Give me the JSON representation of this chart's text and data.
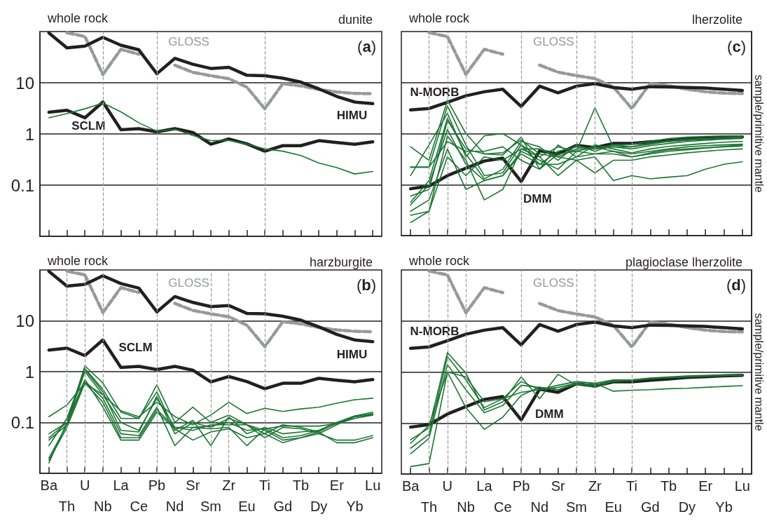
{
  "chart_data": [
    {
      "type": "line",
      "title": "dunite",
      "subtitle": "whole rock",
      "annotations": [
        "(a)"
      ],
      "categories": [
        "Ba",
        "Th",
        "U",
        "Nb",
        "La",
        "Ce",
        "Pb",
        "Nd",
        "Sr",
        "Sm",
        "Zr",
        "Eu",
        "Ti",
        "Gd",
        "Tb",
        "Dy",
        "Er",
        "Yb",
        "Lu"
      ],
      "log": "y",
      "ylim": [
        0.01,
        100
      ],
      "yticks": [
        0.1,
        1,
        10
      ],
      "grid": "y",
      "marker": "none",
      "tick_labels": "y",
      "ref_lines": [
        {
          "axis": "x",
          "value": "Nb",
          "color": "#999999",
          "line_style": "dashed"
        },
        {
          "axis": "x",
          "value": "Pb",
          "color": "#999999",
          "line_style": "dashed"
        },
        {
          "axis": "x",
          "value": "Ti",
          "color": "#999999",
          "line_style": "dashed"
        }
      ],
      "series": [
        {
          "name": "GLOSS",
          "color": "#97999c",
          "line_style": "dashed",
          "values": [
            null,
            95,
            80,
            14.5,
            45,
            36,
            null,
            22,
            16,
            13.7,
            12,
            8.2,
            3.1,
            9.6,
            8.7,
            7.4,
            6.6,
            6.2,
            6.1
          ]
        },
        {
          "name": "HIMU",
          "color": "#231f20",
          "values": [
            94,
            48,
            52,
            77,
            54,
            44,
            15,
            30,
            23,
            19,
            20,
            14,
            13.7,
            12.3,
            10.3,
            7.6,
            5.4,
            4.2,
            3.9
          ]
        },
        {
          "name": "SCLM",
          "color": "#231f20",
          "values": [
            2.65,
            2.9,
            2.07,
            4.2,
            1.21,
            1.27,
            1.1,
            1.27,
            1.07,
            0.63,
            0.8,
            0.64,
            0.46,
            0.59,
            0.59,
            0.74,
            0.68,
            0.63,
            0.7
          ]
        },
        {
          "color": "#1b7533",
          "values": [
            2.07,
            2.5,
            3.1,
            4.0,
            2.7,
            1.65,
            1.13,
            1.24,
            0.93,
            0.74,
            0.75,
            0.63,
            0.51,
            0.46,
            0.38,
            0.27,
            0.22,
            0.165,
            0.185
          ]
        }
      ]
    },
    {
      "type": "line",
      "title": "harzburgite",
      "subtitle": "whole rock",
      "annotations": [
        "(b)"
      ],
      "categories": [
        "Ba",
        "Th",
        "U",
        "Nb",
        "La",
        "Ce",
        "Pb",
        "Nd",
        "Sr",
        "Sm",
        "Zr",
        "Eu",
        "Ti",
        "Gd",
        "Tb",
        "Dy",
        "Er",
        "Yb",
        "Lu"
      ],
      "log": "y",
      "ylim": [
        0.01,
        100
      ],
      "yticks": [
        0.1,
        1,
        10
      ],
      "grid": "y",
      "marker": "none",
      "ref_lines": [
        {
          "axis": "x",
          "value": "Th",
          "color": "#999999",
          "line_style": "dashed"
        },
        {
          "axis": "x",
          "value": "U",
          "color": "#999999",
          "line_style": "dashed"
        },
        {
          "axis": "x",
          "value": "Nb",
          "color": "#999999",
          "line_style": "dashed"
        },
        {
          "axis": "x",
          "value": "Pb",
          "color": "#999999",
          "line_style": "dashed"
        },
        {
          "axis": "x",
          "value": "Sm",
          "color": "#999999",
          "line_style": "dashed"
        },
        {
          "axis": "x",
          "value": "Zr",
          "color": "#999999",
          "line_style": "dashed"
        },
        {
          "axis": "x",
          "value": "Ti",
          "color": "#999999",
          "line_style": "dashed"
        }
      ],
      "series": [
        {
          "name": "GLOSS",
          "color": "#97999c",
          "line_style": "dashed",
          "values": [
            null,
            95,
            80,
            14.5,
            45,
            36,
            null,
            22,
            16,
            13.7,
            12,
            8.2,
            3.1,
            9.6,
            8.7,
            7.4,
            6.6,
            6.2,
            6.1
          ]
        },
        {
          "name": "HIMU",
          "color": "#231f20",
          "values": [
            94,
            48,
            52,
            77,
            54,
            44,
            15,
            30,
            23,
            19,
            20,
            14,
            13.7,
            12.3,
            10.3,
            7.6,
            5.4,
            4.2,
            3.9
          ]
        },
        {
          "name": "SCLM",
          "color": "#231f20",
          "values": [
            2.65,
            2.9,
            2.07,
            4.2,
            1.21,
            1.27,
            1.1,
            1.27,
            1.07,
            0.63,
            0.8,
            0.64,
            0.46,
            0.59,
            0.59,
            0.74,
            0.68,
            0.63,
            0.7
          ]
        },
        {
          "color": "#1b7533",
          "values": [
            0.13,
            0.22,
            0.6,
            0.35,
            0.17,
            0.13,
            0.25,
            0.13,
            0.09,
            0.14,
            0.25,
            0.15,
            0.19,
            0.165,
            0.185,
            0.2,
            0.24,
            0.28,
            0.3
          ]
        },
        {
          "color": "#1b7533",
          "values": [
            0.06,
            0.1,
            1.3,
            0.6,
            0.16,
            0.12,
            0.55,
            0.1,
            0.2,
            0.1,
            0.14,
            0.09,
            0.06,
            0.09,
            0.08,
            0.065,
            0.1,
            0.13,
            0.15
          ]
        },
        {
          "color": "#1b7533",
          "values": [
            0.045,
            0.09,
            1.15,
            0.45,
            0.12,
            0.12,
            0.4,
            0.07,
            0.11,
            0.035,
            0.13,
            0.06,
            0.08,
            0.06,
            0.065,
            0.07,
            0.1,
            0.135,
            0.16
          ]
        },
        {
          "color": "#1b7533",
          "values": [
            0.035,
            0.12,
            1.1,
            0.4,
            0.07,
            0.065,
            0.33,
            0.06,
            0.1,
            0.08,
            0.12,
            0.09,
            0.05,
            0.08,
            0.075,
            0.06,
            0.09,
            0.13,
            0.14
          ]
        },
        {
          "color": "#1b7533",
          "values": [
            0.02,
            0.09,
            0.65,
            0.3,
            0.06,
            0.055,
            0.2,
            0.035,
            0.08,
            0.075,
            0.08,
            0.035,
            0.075,
            0.05,
            0.055,
            0.07,
            0.095,
            0.13,
            0.145
          ]
        },
        {
          "color": "#1b7533",
          "values": [
            0.018,
            0.08,
            0.6,
            0.25,
            0.05,
            0.05,
            0.18,
            0.08,
            0.07,
            0.09,
            0.09,
            0.09,
            0.07,
            0.045,
            0.05,
            0.06,
            0.045,
            0.045,
            0.055
          ]
        },
        {
          "color": "#1b7533",
          "values": [
            0.016,
            0.1,
            0.7,
            0.2,
            0.045,
            0.045,
            0.16,
            0.075,
            0.045,
            0.065,
            0.075,
            0.05,
            0.06,
            0.04,
            0.05,
            0.065,
            0.04,
            0.04,
            0.05
          ]
        },
        {
          "color": "#1b7533",
          "values": [
            0.05,
            0.1,
            1.0,
            0.35,
            0.1,
            0.07,
            0.3,
            0.08,
            0.08,
            0.085,
            0.1,
            0.07,
            0.075,
            0.085,
            0.085,
            0.085,
            0.095,
            0.12,
            0.14
          ]
        }
      ]
    },
    {
      "type": "line",
      "title": "lherzolite",
      "subtitle": "whole rock",
      "ylabel": "sample/primitive mantle",
      "annotations": [
        "(c)"
      ],
      "categories": [
        "Ba",
        "Th",
        "U",
        "Nb",
        "La",
        "Ce",
        "Pb",
        "Nd",
        "Sr",
        "Sm",
        "Zr",
        "Eu",
        "Ti",
        "Gd",
        "Tb",
        "Dy",
        "Er",
        "Yb",
        "Lu"
      ],
      "log": "y",
      "ylim": [
        0.01,
        100
      ],
      "yticks": [
        0.1,
        1,
        10
      ],
      "grid": "y",
      "marker": "none",
      "tick_labels": false,
      "ref_lines": [
        {
          "axis": "x",
          "value": "Th",
          "color": "#999999",
          "line_style": "dashed"
        },
        {
          "axis": "x",
          "value": "U",
          "color": "#999999",
          "line_style": "dashed"
        },
        {
          "axis": "x",
          "value": "Nb",
          "color": "#999999",
          "line_style": "dashed"
        },
        {
          "axis": "x",
          "value": "Pb",
          "color": "#999999",
          "line_style": "dashed"
        },
        {
          "axis": "x",
          "value": "Sm",
          "color": "#999999",
          "line_style": "dashed"
        },
        {
          "axis": "x",
          "value": "Zr",
          "color": "#999999",
          "line_style": "dashed"
        },
        {
          "axis": "x",
          "value": "Ti",
          "color": "#999999",
          "line_style": "dashed"
        }
      ],
      "series": [
        {
          "name": "GLOSS",
          "color": "#97999c",
          "line_style": "dashed",
          "values": [
            null,
            95,
            80,
            14.5,
            45,
            36,
            null,
            22,
            16,
            13.7,
            12,
            8.2,
            3.1,
            9.6,
            8.7,
            7.4,
            6.6,
            6.2,
            6.1
          ]
        },
        {
          "name": "N-MORB",
          "color": "#231f20",
          "values": [
            2.9,
            3.1,
            4.1,
            5.5,
            6.6,
            7.4,
            3.4,
            8.5,
            6.3,
            8.5,
            9.5,
            8.0,
            7.4,
            8.3,
            8.2,
            8.0,
            7.8,
            7.4,
            7.0
          ]
        },
        {
          "name": "DMM",
          "color": "#231f20",
          "values": [
            0.083,
            0.093,
            0.15,
            0.21,
            0.29,
            0.33,
            0.115,
            0.46,
            0.4,
            0.59,
            0.53,
            0.64,
            0.64,
            0.69,
            0.73,
            0.78,
            0.81,
            0.84,
            0.86
          ]
        },
        {
          "color": "#1b7533",
          "values": [
            0.55,
            0.3,
            4.5,
            1.0,
            0.4,
            0.42,
            0.75,
            0.4,
            0.35,
            0.5,
            0.5,
            0.6,
            0.62,
            0.7,
            0.8,
            0.85,
            0.88,
            0.9,
            0.9
          ]
        },
        {
          "color": "#1b7533",
          "values": [
            0.22,
            0.22,
            3.5,
            0.6,
            0.15,
            0.17,
            0.6,
            0.25,
            0.45,
            0.55,
            0.5,
            0.55,
            0.55,
            0.62,
            0.7,
            0.74,
            0.78,
            0.82,
            0.84
          ]
        },
        {
          "color": "#1b7533",
          "values": [
            0.15,
            0.6,
            2.5,
            0.35,
            0.9,
            1.0,
            0.6,
            0.35,
            0.55,
            0.45,
            3.2,
            0.55,
            0.5,
            0.58,
            0.64,
            0.7,
            0.74,
            0.78,
            0.8
          ]
        },
        {
          "color": "#1b7533",
          "values": [
            0.06,
            0.08,
            1.8,
            0.5,
            0.4,
            0.38,
            0.85,
            0.2,
            0.6,
            0.35,
            0.6,
            0.5,
            0.42,
            0.5,
            0.56,
            0.6,
            0.64,
            0.68,
            0.7
          ]
        },
        {
          "color": "#1b7533",
          "values": [
            0.04,
            0.1,
            1.2,
            0.25,
            0.12,
            0.15,
            0.45,
            0.3,
            0.2,
            0.45,
            0.55,
            0.45,
            0.4,
            0.45,
            0.5,
            0.55,
            0.58,
            0.6,
            0.62
          ]
        },
        {
          "color": "#1b7533",
          "values": [
            0.03,
            0.05,
            0.5,
            0.08,
            0.12,
            0.15,
            0.4,
            0.25,
            0.25,
            0.35,
            0.4,
            0.4,
            0.35,
            0.4,
            0.45,
            0.48,
            0.52,
            0.55,
            0.57
          ]
        },
        {
          "color": "#1b7533",
          "values": [
            0.025,
            0.03,
            0.9,
            0.3,
            0.05,
            0.08,
            0.5,
            0.35,
            0.15,
            0.3,
            0.17,
            0.3,
            0.3,
            0.35,
            0.38,
            0.42,
            0.45,
            0.48,
            0.5
          ]
        },
        {
          "color": "#1b7533",
          "values": [
            0.018,
            0.03,
            0.35,
            0.15,
            0.35,
            0.3,
            0.5,
            0.5,
            0.35,
            0.3,
            0.35,
            0.12,
            0.15,
            0.13,
            0.14,
            0.15,
            0.2,
            0.25,
            0.28
          ]
        },
        {
          "color": "#1b7533",
          "values": [
            0.22,
            0.22,
            0.7,
            0.45,
            0.45,
            0.55,
            0.3,
            0.2,
            0.4,
            0.45,
            0.4,
            0.45,
            0.35,
            0.42,
            0.48,
            0.5,
            0.53,
            0.56,
            0.6
          ]
        },
        {
          "color": "#1b7533",
          "values": [
            0.045,
            0.12,
            2.0,
            0.4,
            0.13,
            0.2,
            0.7,
            0.55,
            0.3,
            0.6,
            0.45,
            0.6,
            0.55,
            0.65,
            0.72,
            0.78,
            0.8,
            0.83,
            0.86
          ]
        }
      ]
    },
    {
      "type": "line",
      "title": "plagioclase lherzolite",
      "subtitle": "whole rock",
      "ylabel": "sample/primitive mantle",
      "annotations": [
        "(d)"
      ],
      "categories": [
        "Ba",
        "Th",
        "U",
        "Nb",
        "La",
        "Ce",
        "Pb",
        "Nd",
        "Sr",
        "Sm",
        "Zr",
        "Eu",
        "Ti",
        "Gd",
        "Tb",
        "Dy",
        "Er",
        "Yb",
        "Lu"
      ],
      "log": "y",
      "ylim": [
        0.01,
        100
      ],
      "yticks": [
        0.1,
        1,
        10
      ],
      "grid": "y",
      "marker": "none",
      "tick_labels": "x",
      "ref_lines": [
        {
          "axis": "x",
          "value": "Th",
          "color": "#999999",
          "line_style": "dashed"
        },
        {
          "axis": "x",
          "value": "U",
          "color": "#999999",
          "line_style": "dashed"
        },
        {
          "axis": "x",
          "value": "Nb",
          "color": "#999999",
          "line_style": "dashed"
        },
        {
          "axis": "x",
          "value": "Pb",
          "color": "#999999",
          "line_style": "dashed"
        },
        {
          "axis": "x",
          "value": "Sm",
          "color": "#999999",
          "line_style": "dashed"
        },
        {
          "axis": "x",
          "value": "Zr",
          "color": "#999999",
          "line_style": "dashed"
        },
        {
          "axis": "x",
          "value": "Ti",
          "color": "#999999",
          "line_style": "dashed"
        }
      ],
      "series": [
        {
          "name": "GLOSS",
          "color": "#97999c",
          "line_style": "dashed",
          "values": [
            null,
            95,
            80,
            14.5,
            45,
            36,
            null,
            22,
            16,
            13.7,
            12,
            8.2,
            3.1,
            9.6,
            8.7,
            7.4,
            6.6,
            6.2,
            6.1
          ]
        },
        {
          "name": "N-MORB",
          "color": "#231f20",
          "values": [
            2.9,
            3.1,
            4.1,
            5.5,
            6.6,
            7.4,
            3.4,
            8.5,
            6.3,
            8.5,
            9.5,
            8.0,
            7.4,
            8.3,
            8.2,
            8.0,
            7.8,
            7.4,
            7.0
          ]
        },
        {
          "name": "DMM",
          "color": "#231f20",
          "values": [
            0.083,
            0.093,
            0.15,
            0.21,
            0.29,
            0.33,
            0.115,
            0.46,
            0.4,
            0.59,
            0.53,
            0.64,
            0.64,
            0.69,
            0.73,
            0.78,
            0.81,
            0.84,
            0.86
          ]
        },
        {
          "color": "#1b7533",
          "values": [
            0.047,
            0.08,
            2.4,
            0.95,
            0.18,
            0.26,
            0.8,
            0.3,
            0.9,
            0.55,
            0.6,
            0.7,
            0.7,
            0.76,
            0.8,
            0.84,
            0.86,
            0.88,
            0.88
          ]
        },
        {
          "color": "#1b7533",
          "values": [
            0.032,
            0.06,
            2.0,
            0.7,
            0.2,
            0.3,
            0.65,
            0.45,
            0.5,
            0.6,
            0.55,
            0.68,
            0.7,
            0.75,
            0.78,
            0.82,
            0.84,
            0.86,
            0.87
          ]
        },
        {
          "color": "#1b7533",
          "values": [
            0.025,
            0.05,
            1.4,
            0.45,
            0.16,
            0.22,
            0.55,
            0.5,
            0.45,
            0.58,
            0.55,
            0.67,
            0.68,
            0.74,
            0.77,
            0.8,
            0.83,
            0.85,
            0.86
          ]
        },
        {
          "color": "#1b7533",
          "values": [
            0.014,
            0.016,
            1.0,
            0.8,
            0.26,
            0.3,
            0.4,
            0.45,
            0.55,
            0.65,
            0.6,
            0.42,
            0.44,
            0.45,
            0.47,
            0.48,
            0.5,
            0.52,
            0.54
          ]
        },
        {
          "color": "#1b7533",
          "values": [
            0.04,
            0.09,
            1.0,
            0.2,
            0.075,
            0.13,
            0.35,
            0.5,
            0.45,
            0.6,
            0.5,
            0.65,
            0.68,
            0.74,
            0.78,
            0.81,
            0.84,
            0.86,
            0.86
          ]
        }
      ]
    }
  ]
}
